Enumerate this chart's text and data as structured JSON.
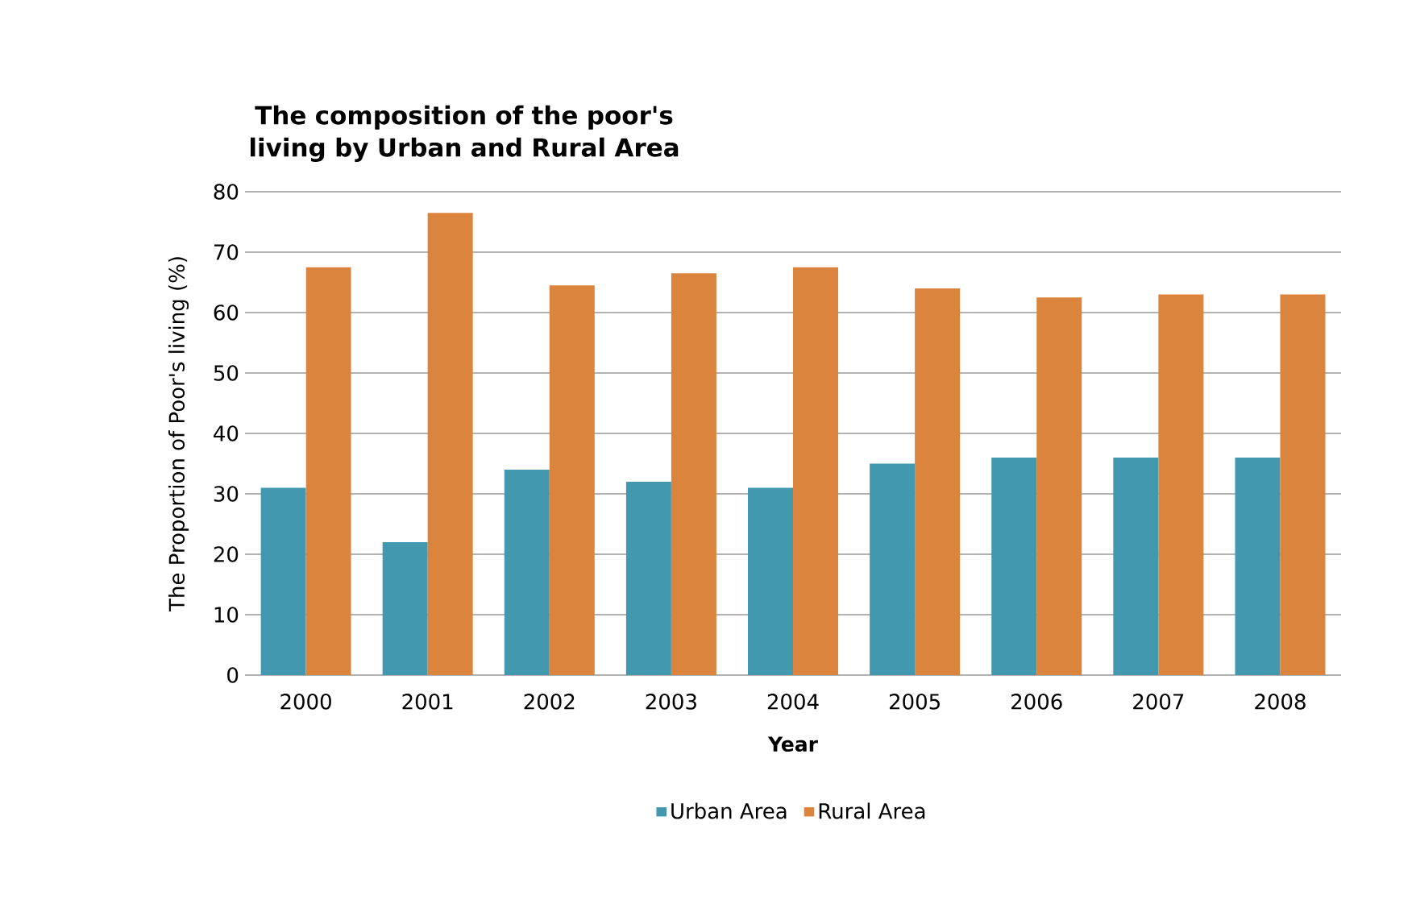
{
  "chart_data": {
    "type": "bar",
    "title": "The composition of the poor's living by Urban and Rural Area",
    "xlabel": "Year",
    "ylabel": "The Proportion of Poor's living (%)",
    "categories": [
      "2000",
      "2001",
      "2002",
      "2003",
      "2004",
      "2005",
      "2006",
      "2007",
      "2008"
    ],
    "series": [
      {
        "name": "Urban Area",
        "color": "#4198af",
        "values": [
          31,
          22,
          34,
          32,
          31,
          35,
          36,
          36,
          36
        ]
      },
      {
        "name": "Rural Area",
        "color": "#db843d",
        "values": [
          67.5,
          76.5,
          64.5,
          66.5,
          67.5,
          64,
          62.5,
          63,
          63
        ]
      }
    ],
    "ylim": [
      0,
      80
    ],
    "yticks": [
      0,
      10,
      20,
      30,
      40,
      50,
      60,
      70,
      80
    ],
    "grid": "y",
    "legend": "bottom"
  }
}
